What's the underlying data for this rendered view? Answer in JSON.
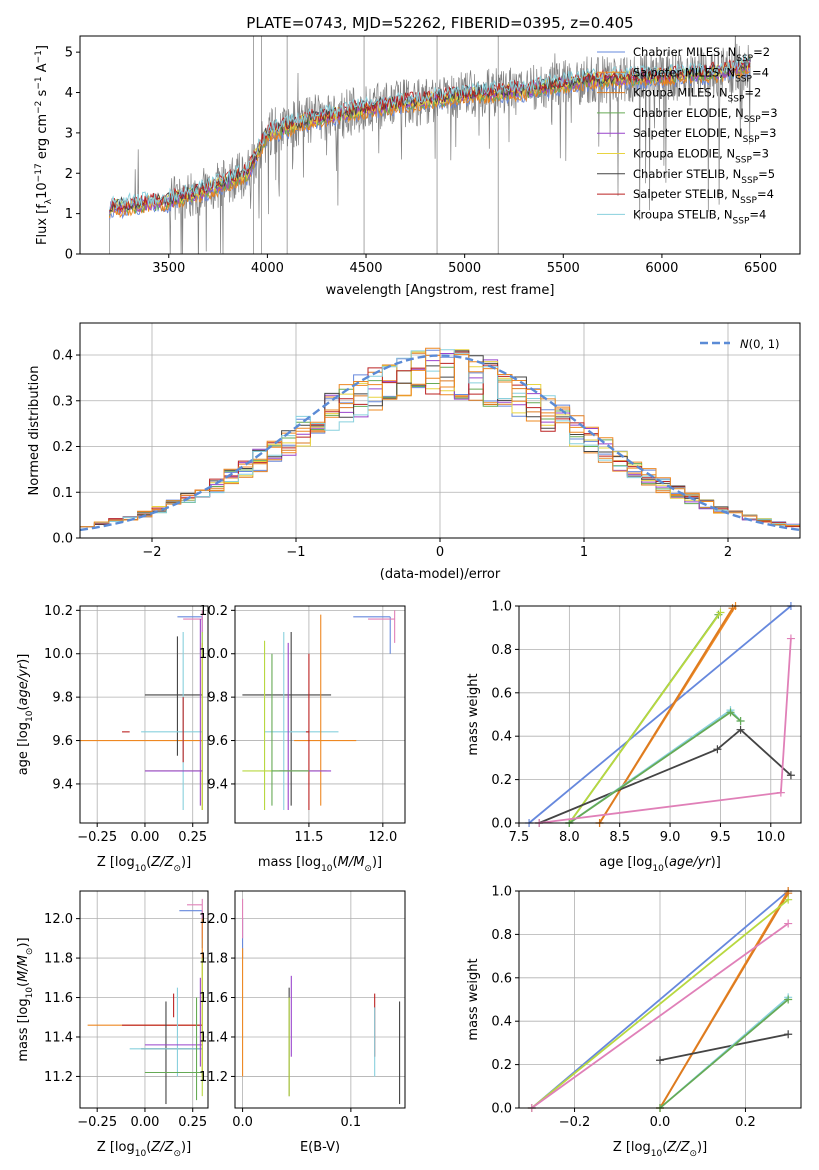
{
  "title": "PLATE=0743, MJD=52262, FIBERID=0395, z=0.405",
  "colors": [
    "#6688dd",
    "#ee8822",
    "#dd7b20",
    "#66aa55",
    "#9944cc",
    "#e8d440",
    "#444444",
    "#bb2222",
    "#88d0dd",
    "#e080b8",
    "#b8d840"
  ],
  "chart_data": [
    {
      "id": "spectrum",
      "type": "line",
      "xlabel": "wavelength [Angstrom, rest frame]",
      "ylabel": "Flux [f",
      "ylabel_sub": "λ",
      "ylabel_rest": "10",
      "ylabel_exp": "−17",
      "ylabel_unit": " erg cm",
      "ylabel_e2": "−2",
      "ylabel_s": " s",
      "ylabel_e3": "−1",
      "ylabel_a": " A",
      "ylabel_e4": "−1",
      "ylabel_end": "]",
      "xlim": [
        3050,
        6700
      ],
      "ylim": [
        0,
        5.4
      ],
      "xticks": [
        3500,
        4000,
        4500,
        5000,
        5500,
        6000,
        6500
      ],
      "yticks": [
        0,
        1,
        2,
        3,
        4,
        5
      ],
      "legend_position": "top-right",
      "legend": [
        {
          "label": "Chabrier MILES, N",
          "sub": "SSP",
          "tail": "=2",
          "color": "#6688dd"
        },
        {
          "label": "Salpeter MILES, N",
          "sub": "SSP",
          "tail": "=4",
          "color": "#ee8822"
        },
        {
          "label": "Kroupa MILES, N",
          "sub": "SSP",
          "tail": "=2",
          "color": "#dd7b20"
        },
        {
          "label": "Chabrier ELODIE, N",
          "sub": "SSP",
          "tail": "=3",
          "color": "#66aa55"
        },
        {
          "label": "Salpeter ELODIE, N",
          "sub": "SSP",
          "tail": "=3",
          "color": "#9944cc"
        },
        {
          "label": "Kroupa ELODIE, N",
          "sub": "SSP",
          "tail": "=3",
          "color": "#e8d440"
        },
        {
          "label": "Chabrier STELIB, N",
          "sub": "SSP",
          "tail": "=5",
          "color": "#444444"
        },
        {
          "label": "Salpeter STELIB, N",
          "sub": "SSP",
          "tail": "=4",
          "color": "#bb2222"
        },
        {
          "label": "Kroupa STELIB, N",
          "sub": "SSP",
          "tail": "=4",
          "color": "#88d0dd"
        }
      ],
      "continuum_anchors": [
        [
          3200,
          1.15
        ],
        [
          3500,
          1.3
        ],
        [
          3700,
          1.6
        ],
        [
          3900,
          2.0
        ],
        [
          4000,
          3.0
        ],
        [
          4200,
          3.3
        ],
        [
          4500,
          3.6
        ],
        [
          4800,
          3.8
        ],
        [
          5000,
          3.95
        ],
        [
          5300,
          4.05
        ],
        [
          5600,
          4.3
        ],
        [
          6000,
          4.4
        ],
        [
          6300,
          4.5
        ],
        [
          6450,
          4.7
        ]
      ],
      "data_range": [
        3200,
        6450
      ]
    },
    {
      "id": "residuals",
      "type": "histogram",
      "xlabel": "(data-model)/error",
      "ylabel": "Normed distribution",
      "xlim": [
        -2.5,
        2.5
      ],
      "ylim": [
        0,
        0.47
      ],
      "xticks": [
        -2,
        -1,
        0,
        1,
        2
      ],
      "yticks": [
        0.0,
        0.1,
        0.2,
        0.3,
        0.4
      ],
      "legend": [
        {
          "label": "N(0, 1)",
          "color": "#6688dd"
        }
      ],
      "legend_position": "top-right",
      "bin_width": 0.1
    },
    {
      "id": "age-vs-Z",
      "type": "errorbar",
      "xlabel": "Z [log",
      "xlabel_sub": "10",
      "xlabel_rest": "(Z/Z",
      "xlabel_sun": "⊙",
      "xlabel_end": ")]",
      "ylabel": "age  [log",
      "ylabel_sub": "10",
      "ylabel_rest": "(age/yr)]",
      "xlim": [
        -0.34,
        0.33
      ],
      "ylim": [
        9.22,
        10.22
      ],
      "xticks": [
        -0.25,
        0.0,
        0.25
      ],
      "yticks": [
        9.4,
        9.6,
        9.8,
        10.0,
        10.2
      ],
      "points": [
        {
          "x": 0.3,
          "y": 10.17,
          "xerr": 0.0,
          "yerr": 0.0,
          "color": "#6688dd",
          "xl": 0.12,
          "yl": 0.0
        },
        {
          "x": 0.3,
          "y": 10.16,
          "xerr": 0.0,
          "yerr": 0.04,
          "color": "#e080b8",
          "xl": 0.12,
          "yl": 0.0
        },
        {
          "x": 0.3,
          "y": 9.6,
          "color": "#ee8822",
          "xl": 0.62,
          "yl": 0.0
        },
        {
          "x": 0.17,
          "y": 9.81,
          "color": "#444444",
          "xl": 0.14,
          "yr": 0.28
        },
        {
          "x": 0.2,
          "y": 9.64,
          "color": "#88d0dd",
          "xl": 0.22,
          "yr": 0.46
        },
        {
          "x": -0.1,
          "y": 9.64,
          "color": "#bb2222",
          "xl": 0.02,
          "xr": 0.0
        },
        {
          "x": 0.3,
          "y": 9.46,
          "color": "#b8d840",
          "xl": 0.3,
          "yl": 0.0
        },
        {
          "x": 0.3,
          "y": 9.46,
          "color": "#9944cc",
          "xl": 0.3,
          "yl": 0.0
        }
      ]
    },
    {
      "id": "age-vs-mass",
      "type": "errorbar",
      "xlabel": "mass [log",
      "xlabel_sub": "10",
      "xlabel_rest": "(M/M",
      "xlabel_sun": "⊙",
      "xlabel_end": ")]",
      "xlim": [
        11.0,
        12.15
      ],
      "ylim": [
        9.22,
        10.22
      ],
      "xticks": [
        11.5,
        12.0
      ],
      "yticks": [
        9.4,
        9.6,
        9.8,
        10.0,
        10.2
      ]
    },
    {
      "id": "weight-vs-age",
      "type": "line",
      "xlabel": "age  [log",
      "xlabel_sub": "10",
      "xlabel_rest": "(age/yr)]",
      "ylabel": "mass weight",
      "xlim": [
        7.5,
        10.3
      ],
      "ylim": [
        0,
        1
      ],
      "xticks": [
        7.5,
        8.0,
        8.5,
        9.0,
        9.5,
        10.0
      ],
      "yticks": [
        0.0,
        0.2,
        0.4,
        0.6,
        0.8,
        1.0
      ],
      "series": [
        {
          "color": "#6688dd",
          "x": [
            7.6,
            10.2
          ],
          "y": [
            0.0,
            1.0
          ]
        },
        {
          "color": "#ee8822",
          "x": [
            8.3,
            9.65
          ],
          "y": [
            0.0,
            1.0
          ]
        },
        {
          "color": "#dd7b20",
          "x": [
            8.3,
            9.62
          ],
          "y": [
            0.0,
            0.99
          ]
        },
        {
          "color": "#66aa55",
          "x": [
            8.0,
            9.48
          ],
          "y": [
            0.0,
            0.96
          ]
        },
        {
          "color": "#b8d840",
          "x": [
            8.0,
            9.5
          ],
          "y": [
            0.0,
            0.97
          ]
        },
        {
          "color": "#444444",
          "x": [
            7.7,
            9.47,
            9.7,
            10.2
          ],
          "y": [
            0.0,
            0.34,
            0.43,
            0.22
          ]
        },
        {
          "color": "#88d0dd",
          "x": [
            8.0,
            9.6,
            9.7
          ],
          "y": [
            0.0,
            0.52,
            0.47
          ]
        },
        {
          "color": "#66aa55",
          "x": [
            8.0,
            9.6,
            9.7
          ],
          "y": [
            0.0,
            0.51,
            0.47
          ]
        },
        {
          "color": "#e080b8",
          "x": [
            7.7,
            10.1,
            10.2
          ],
          "y": [
            0.0,
            0.14,
            0.85
          ]
        }
      ]
    },
    {
      "id": "mass-vs-Z",
      "type": "errorbar",
      "xlabel": "Z [log",
      "xlabel_sub": "10",
      "xlabel_rest": "(Z/Z",
      "xlabel_sun": "⊙",
      "xlabel_end": ")]",
      "ylabel": "mass [log",
      "ylabel_sub": "10",
      "ylabel_rest": "(M/M",
      "ylabel_sun": "⊙",
      "ylabel_end": ")]",
      "xlim": [
        -0.34,
        0.33
      ],
      "ylim": [
        11.04,
        12.14
      ],
      "xticks": [
        -0.25,
        0.0,
        0.25
      ],
      "yticks": [
        11.2,
        11.4,
        11.6,
        11.8,
        12.0
      ]
    },
    {
      "id": "mass-vs-ebv",
      "type": "errorbar",
      "xlabel": "E(B-V)",
      "xlim": [
        -0.007,
        0.15
      ],
      "ylim": [
        11.04,
        12.14
      ],
      "xticks": [
        0.0,
        0.1
      ],
      "yticks": [
        11.2,
        11.4,
        11.6,
        11.8,
        12.0
      ]
    },
    {
      "id": "weight-vs-Z",
      "type": "line",
      "xlabel": "Z [log",
      "xlabel_sub": "10",
      "xlabel_rest": "(Z/Z",
      "xlabel_sun": "⊙",
      "xlabel_end": ")]",
      "ylabel": "mass weight",
      "xlim": [
        -0.33,
        0.33
      ],
      "ylim": [
        0,
        1
      ],
      "xticks": [
        -0.2,
        0.0,
        0.2
      ],
      "yticks": [
        0.0,
        0.2,
        0.4,
        0.6,
        0.8,
        1.0
      ],
      "series": [
        {
          "color": "#6688dd",
          "x": [
            -0.3,
            0.3
          ],
          "y": [
            0.0,
            1.0
          ]
        },
        {
          "color": "#ee8822",
          "x": [
            0.0,
            0.3
          ],
          "y": [
            0.0,
            1.0
          ]
        },
        {
          "color": "#dd7b20",
          "x": [
            0.0,
            0.3
          ],
          "y": [
            0.0,
            0.99
          ]
        },
        {
          "color": "#b8d840",
          "x": [
            -0.3,
            0.3
          ],
          "y": [
            0.0,
            0.96
          ]
        },
        {
          "color": "#e080b8",
          "x": [
            -0.3,
            0.3
          ],
          "y": [
            0.0,
            0.85
          ]
        },
        {
          "color": "#444444",
          "x": [
            0.0,
            0.3
          ],
          "y": [
            0.22,
            0.34
          ]
        },
        {
          "color": "#88d0dd",
          "x": [
            0.0,
            0.3
          ],
          "y": [
            0.0,
            0.51
          ]
        },
        {
          "color": "#66aa55",
          "x": [
            0.0,
            0.3
          ],
          "y": [
            0.0,
            0.5
          ]
        }
      ]
    }
  ]
}
